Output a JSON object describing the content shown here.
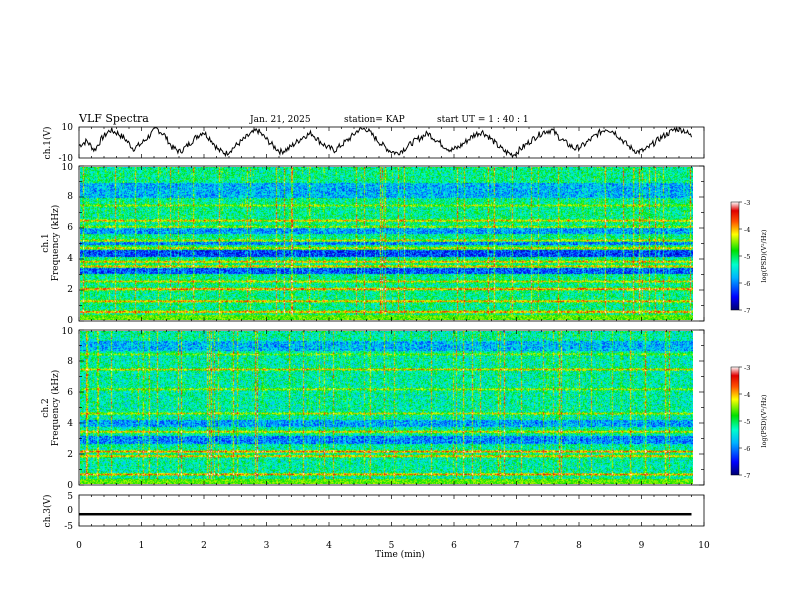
{
  "header": {
    "title": "VLF Spectra",
    "date": "Jan. 21, 2025",
    "station": "station= KAP",
    "start_ut": "start  UT =   1 : 40 : 1"
  },
  "chart_data": [
    {
      "type": "line",
      "name": "ch1-waveform",
      "ylabel": "ch.1(V)",
      "ylim": [
        -10,
        10
      ],
      "yticks": [
        "10",
        "-10"
      ],
      "xlim": [
        0,
        9.8
      ],
      "description_values": "noisy waveform oscillating roughly between -8 and 9 V",
      "y_samples": [
        -2,
        1,
        -5,
        3,
        8,
        6,
        2,
        -4,
        -1,
        4,
        9,
        5,
        -3,
        -6,
        -2,
        3,
        7,
        2,
        -5,
        -7,
        -3,
        1,
        5,
        8,
        3,
        -2,
        -6,
        -4,
        0,
        4,
        6,
        1,
        -3,
        -5,
        -1,
        3,
        8,
        9,
        4,
        -1,
        -5,
        -7,
        -4,
        0,
        3,
        6,
        2,
        -2,
        -5,
        -3,
        1,
        5,
        7,
        3,
        -2,
        -6,
        -8,
        -4,
        0,
        4,
        7,
        8,
        3,
        -1,
        -4,
        -2,
        2,
        6,
        9,
        7,
        2,
        -3,
        -6,
        -5,
        -1,
        3,
        6,
        9,
        8,
        4
      ]
    },
    {
      "type": "heatmap",
      "name": "ch1-spectrogram",
      "ylabel": "ch.1\nFrequency (kHz)",
      "ylabel_top": "ch.1",
      "ylabel_bottom": "Frequency (kHz)",
      "ylim": [
        0,
        10
      ],
      "yticks": [
        "0",
        "2",
        "4",
        "6",
        "8",
        "10"
      ],
      "xlim": [
        0,
        9.8
      ],
      "colorbar": {
        "label": "log(PSD)(V²/Hz)",
        "range": [
          -7,
          -3
        ],
        "ticks": [
          "-3",
          "-4",
          "-5",
          "-6",
          "-7"
        ]
      },
      "bands": [
        {
          "freq": 0.5,
          "level": -3.6
        },
        {
          "freq": 1.2,
          "level": -3.8
        },
        {
          "freq": 2.0,
          "level": -3.5
        },
        {
          "freq": 2.5,
          "level": -4.2
        },
        {
          "freq": 3.5,
          "level": -4.0
        },
        {
          "freq": 3.8,
          "level": -3.9
        },
        {
          "freq": 4.7,
          "level": -4.1
        },
        {
          "freq": 5.2,
          "level": -4.3
        },
        {
          "freq": 6.1,
          "level": -4.4
        },
        {
          "freq": 6.5,
          "level": -4.0
        },
        {
          "freq": 7.5,
          "level": -4.5
        }
      ],
      "quiet_bands": [
        {
          "from": 3.0,
          "to": 3.4,
          "level": -6.2
        },
        {
          "from": 4.1,
          "to": 4.6,
          "level": -6.3
        },
        {
          "from": 4.9,
          "to": 5.1,
          "level": -6.0
        },
        {
          "from": 5.6,
          "to": 6.0,
          "level": -5.9
        },
        {
          "from": 8.0,
          "to": 9.0,
          "level": -5.8
        }
      ],
      "background_level": -5.2
    },
    {
      "type": "heatmap",
      "name": "ch2-spectrogram",
      "ylabel": "ch.2\nFrequency (kHz)",
      "ylabel_top": "ch.2",
      "ylabel_bottom": "Frequency (kHz)",
      "ylim": [
        0,
        10
      ],
      "yticks": [
        "0",
        "2",
        "4",
        "6",
        "8",
        "10"
      ],
      "xlim": [
        0,
        9.8
      ],
      "colorbar": {
        "label": "log(PSD)(V²/Hz)",
        "range": [
          -7,
          -3
        ],
        "ticks": [
          "-3",
          "-4",
          "-5",
          "-6",
          "-7"
        ]
      },
      "bands": [
        {
          "freq": 0.6,
          "level": -3.7
        },
        {
          "freq": 1.8,
          "level": -3.9
        },
        {
          "freq": 2.1,
          "level": -3.6
        },
        {
          "freq": 3.4,
          "level": -4.0
        },
        {
          "freq": 4.6,
          "level": -4.3
        },
        {
          "freq": 6.2,
          "level": -4.4
        },
        {
          "freq": 7.5,
          "level": -4.1
        },
        {
          "freq": 8.5,
          "level": -4.6
        }
      ],
      "quiet_bands": [
        {
          "from": 2.6,
          "to": 3.1,
          "level": -6.0
        },
        {
          "from": 3.7,
          "to": 4.2,
          "level": -5.9
        },
        {
          "from": 8.7,
          "to": 9.4,
          "level": -5.8
        }
      ],
      "background_level": -5.3
    },
    {
      "type": "line",
      "name": "ch3-waveform",
      "ylabel": "ch.3(V)",
      "ylim": [
        -5,
        5
      ],
      "yticks": [
        "5",
        "0",
        "-5"
      ],
      "xlabel": "Time (min)",
      "xlim": [
        0,
        10
      ],
      "xticks": [
        "0",
        "1",
        "2",
        "3",
        "4",
        "5",
        "6",
        "7",
        "8",
        "9",
        "10"
      ],
      "data_range": [
        0,
        9.8
      ],
      "band_value_low": -1.6,
      "band_value_high": -0.8
    }
  ]
}
